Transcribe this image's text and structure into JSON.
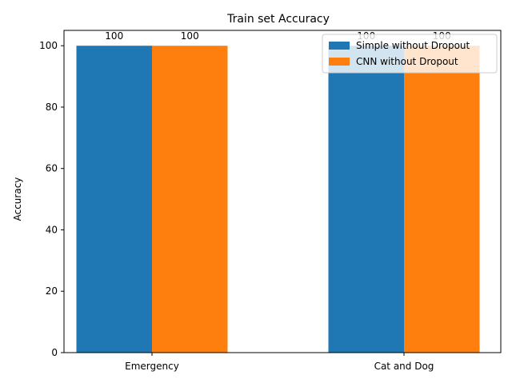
{
  "chart_data": {
    "type": "bar",
    "title": "Train set Accuracy",
    "xlabel": "",
    "ylabel": "Accuracy",
    "categories": [
      "Emergency",
      "Cat and Dog"
    ],
    "series": [
      {
        "name": "Simple without Dropout",
        "values": [
          100,
          100
        ],
        "color": "#1f77b4"
      },
      {
        "name": "CNN  without Dropout",
        "values": [
          100,
          100
        ],
        "color": "#ff7f0e"
      }
    ],
    "ylim": [
      0,
      105
    ],
    "yticks": [
      0,
      20,
      40,
      60,
      80,
      100
    ],
    "data_labels": [
      "100",
      "100",
      "100",
      "100"
    ],
    "legend": "top-right",
    "grid": false
  }
}
